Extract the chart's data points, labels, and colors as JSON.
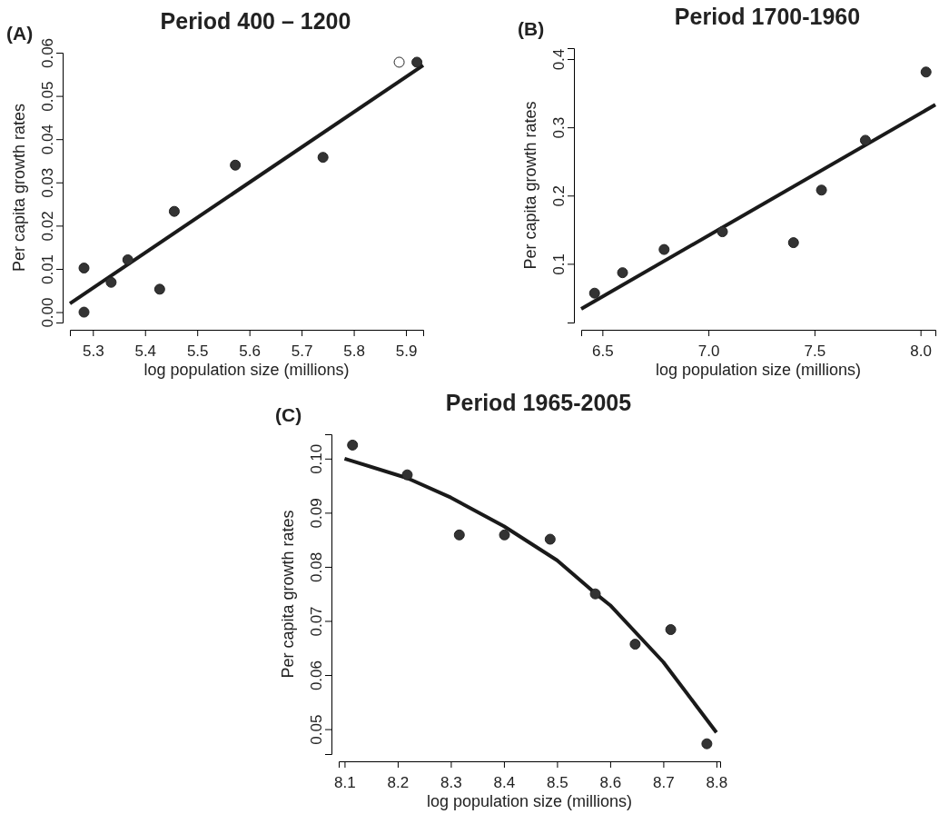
{
  "chart_data": [
    {
      "type": "scatter",
      "title": "Period 400 – 1200",
      "xlabel": "log population size (millions)",
      "ylabel": "Per capita growth rates",
      "annotations": [
        "(A)"
      ],
      "grid": false,
      "xlim": [
        5.256,
        5.933
      ],
      "ylim": [
        -0.0024,
        0.06
      ],
      "xticks": [
        5.3,
        5.4,
        5.5,
        5.6,
        5.7,
        5.8,
        5.9
      ],
      "yticks": [
        {
          "value": 0,
          "label": "0.00"
        },
        0.01,
        0.02,
        0.03,
        0.04,
        0.05,
        0.06
      ],
      "series": [
        {
          "marker": "circle",
          "color": "#333333",
          "x": [
            5.283,
            5.283,
            5.335,
            5.367,
            5.428,
            5.456,
            5.573,
            5.741,
            5.921
          ],
          "values": [
            0.0102,
            0.0,
            0.0069,
            0.0121,
            0.0053,
            0.0233,
            0.034,
            0.0358,
            0.0578
          ]
        },
        {
          "marker": "circle",
          "color": "#ffffff",
          "x": [
            5.887
          ],
          "values": [
            0.0578
          ]
        },
        {
          "type": "line",
          "color": "#1a1a1a",
          "line_style": "solid",
          "x": [
            5.256,
            5.933
          ],
          "values": [
            0.002,
            0.0571
          ]
        }
      ]
    },
    {
      "type": "scatter",
      "title": "Period 1700-1960",
      "xlabel": "log population size (millions)",
      "ylabel": "Per capita growth rates",
      "annotations": [
        "(B)"
      ],
      "grid": false,
      "xlim": [
        6.4,
        8.07
      ],
      "ylim": [
        0.014,
        0.416
      ],
      "xticks": [
        6.5,
        {
          "value": 7,
          "label": "7.0"
        },
        7.5,
        {
          "value": 8,
          "label": "8.0"
        }
      ],
      "yticks": [
        0.1,
        0.2,
        0.3,
        0.4
      ],
      "series": [
        {
          "marker": "circle",
          "color": "#333333",
          "x": [
            6.463,
            6.595,
            6.791,
            7.066,
            7.401,
            7.533,
            7.74,
            8.026
          ],
          "values": [
            0.057,
            0.087,
            0.121,
            0.147,
            0.131,
            0.208,
            0.281,
            0.381
          ]
        },
        {
          "type": "line",
          "color": "#1a1a1a",
          "line_style": "solid",
          "x": [
            6.4,
            8.07
          ],
          "values": [
            0.034,
            0.333
          ]
        }
      ]
    },
    {
      "type": "scatter",
      "title": "Period 1965-2005",
      "xlabel": "log population size (millions)",
      "ylabel": "Per capita growth rates",
      "annotations": [
        "(C)"
      ],
      "grid": false,
      "xlim": [
        8.089,
        8.807
      ],
      "ylim": [
        0.0454,
        0.1045
      ],
      "xticks": [
        8.1,
        8.2,
        8.3,
        8.4,
        8.5,
        8.6,
        8.7,
        8.8
      ],
      "yticks": [
        0.05,
        0.06,
        0.07,
        0.08,
        0.09,
        {
          "value": 0.1,
          "label": "0.10"
        }
      ],
      "series": [
        {
          "marker": "circle",
          "color": "#333333",
          "x": [
            8.115,
            8.218,
            8.316,
            8.401,
            8.487,
            8.572,
            8.647,
            8.714,
            8.782
          ],
          "values": [
            0.1025,
            0.097,
            0.0859,
            0.0859,
            0.0851,
            0.075,
            0.0657,
            0.0684,
            0.0473
          ]
        },
        {
          "type": "line",
          "color": "#1a1a1a",
          "line_style": "solid",
          "x": [
            8.1,
            8.218,
            8.3,
            8.4,
            8.5,
            8.572,
            8.6,
            8.7,
            8.8
          ],
          "values": [
            0.1,
            0.0964,
            0.0928,
            0.0875,
            0.0812,
            0.0751,
            0.0729,
            0.0624,
            0.0494
          ]
        }
      ]
    }
  ]
}
